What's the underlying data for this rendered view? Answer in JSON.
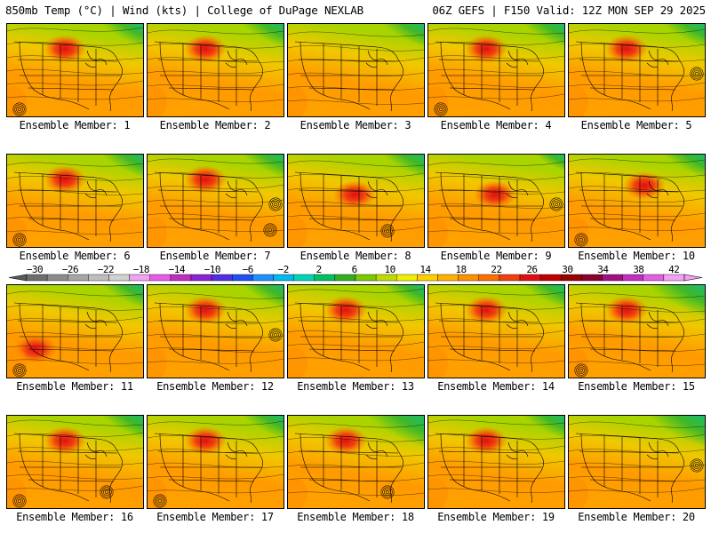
{
  "header": {
    "left": "850mb Temp (°C) | Wind (kts) | College of DuPage NEXLAB",
    "right": "06Z GEFS | F150 Valid: 12Z MON SEP 29 2025"
  },
  "panels": [
    {
      "label": "Ensemble Member: 1",
      "warm_center": "north-central",
      "cold_extent": "moderate",
      "lows": [
        "southwest"
      ]
    },
    {
      "label": "Ensemble Member: 2",
      "warm_center": "north-central",
      "cold_extent": "moderate",
      "lows": []
    },
    {
      "label": "Ensemble Member: 3",
      "warm_center": "none",
      "cold_extent": "moderate",
      "lows": []
    },
    {
      "label": "Ensemble Member: 4",
      "warm_center": "north-central",
      "cold_extent": "moderate",
      "lows": [
        "southwest"
      ]
    },
    {
      "label": "Ensemble Member: 5",
      "warm_center": "north-central",
      "cold_extent": "moderate",
      "lows": [
        "east"
      ]
    },
    {
      "label": "Ensemble Member: 6",
      "warm_center": "north-central",
      "cold_extent": "moderate",
      "lows": [
        "southwest"
      ]
    },
    {
      "label": "Ensemble Member: 7",
      "warm_center": "north-central",
      "cold_extent": "moderate",
      "lows": [
        "east",
        "southeast"
      ]
    },
    {
      "label": "Ensemble Member: 8",
      "warm_center": "central",
      "cold_extent": "moderate",
      "lows": [
        "south"
      ]
    },
    {
      "label": "Ensemble Member: 9",
      "warm_center": "central",
      "cold_extent": "small",
      "lows": [
        "east"
      ]
    },
    {
      "label": "Ensemble Member: 10",
      "warm_center": "north-east",
      "cold_extent": "moderate",
      "lows": [
        "southwest"
      ]
    },
    {
      "label": "Ensemble Member: 11",
      "warm_center": "southwest",
      "cold_extent": "moderate",
      "lows": [
        "southwest"
      ]
    },
    {
      "label": "Ensemble Member: 12",
      "warm_center": "north-central",
      "cold_extent": "moderate",
      "lows": [
        "east"
      ]
    },
    {
      "label": "Ensemble Member: 13",
      "warm_center": "north-central",
      "cold_extent": "moderate",
      "lows": []
    },
    {
      "label": "Ensemble Member: 14",
      "warm_center": "north-central",
      "cold_extent": "moderate",
      "lows": []
    },
    {
      "label": "Ensemble Member: 15",
      "warm_center": "north-central",
      "cold_extent": "large",
      "lows": [
        "southwest"
      ]
    },
    {
      "label": "Ensemble Member: 16",
      "warm_center": "north-central",
      "cold_extent": "moderate",
      "lows": [
        "southwest",
        "south"
      ]
    },
    {
      "label": "Ensemble Member: 17",
      "warm_center": "north-central",
      "cold_extent": "moderate",
      "lows": [
        "southwest"
      ]
    },
    {
      "label": "Ensemble Member: 18",
      "warm_center": "north-central",
      "cold_extent": "large",
      "lows": [
        "south"
      ]
    },
    {
      "label": "Ensemble Member: 19",
      "warm_center": "north-central",
      "cold_extent": "moderate",
      "lows": []
    },
    {
      "label": "Ensemble Member: 20",
      "warm_center": "none",
      "cold_extent": "large",
      "lows": [
        "east"
      ]
    }
  ],
  "colorbar": {
    "labels": [
      "−30",
      "−26",
      "−22",
      "−18",
      "−14",
      "−10",
      "−6",
      "−2",
      "2",
      "6",
      "10",
      "14",
      "18",
      "22",
      "26",
      "30",
      "34",
      "38",
      "42"
    ],
    "colors": [
      "#6e6e6e",
      "#8c8c8c",
      "#a6a6a6",
      "#bebebe",
      "#d1d1d1",
      "#f3a2f3",
      "#e85ce8",
      "#c02ec0",
      "#8a24d2",
      "#5030e0",
      "#2050ef",
      "#1e90ff",
      "#00b9f0",
      "#00d6b4",
      "#00c060",
      "#30b020",
      "#7ec800",
      "#bedc00",
      "#f0f000",
      "#ffd000",
      "#ffb000",
      "#ff9000",
      "#ff6e00",
      "#f04010",
      "#e01010",
      "#c00000",
      "#9a0000",
      "#8a0030",
      "#a01080",
      "#c030c0",
      "#e060e0",
      "#f3a0f3"
    ]
  }
}
